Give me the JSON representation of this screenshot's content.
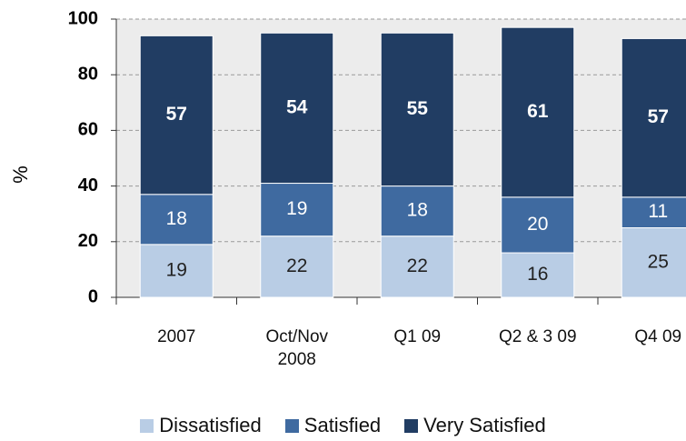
{
  "chart_data": {
    "type": "stacked_bar",
    "y_label": "%",
    "categories": [
      "2007",
      "Oct/Nov 2008",
      "Q1 09",
      "Q2 & 3 09",
      "Q4 09"
    ],
    "series": [
      {
        "name": "Dissatisfied",
        "color": "#b9cde5",
        "values": [
          19,
          22,
          22,
          16,
          25
        ]
      },
      {
        "name": "Satisfied",
        "color": "#3f6aa0",
        "values": [
          18,
          19,
          18,
          20,
          11
        ]
      },
      {
        "name": "Very Satisfied",
        "color": "#213d63",
        "values": [
          57,
          54,
          55,
          61,
          57
        ]
      }
    ],
    "ylim": [
      0,
      100
    ],
    "yticks": [
      0,
      20,
      40,
      60,
      80,
      100
    ],
    "grid": true
  }
}
